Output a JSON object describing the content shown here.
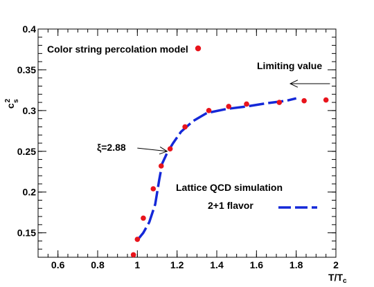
{
  "chart_data": {
    "type": "scatter",
    "xlabel": "T/T",
    "xlabel_sub": "c",
    "ylabel": "c",
    "ylabel_sup": "2",
    "ylabel_sub": "s",
    "xlim": [
      0.5,
      2.0
    ],
    "ylim": [
      0.12,
      0.4
    ],
    "x_ticks": [
      0.6,
      0.8,
      1.0,
      1.2,
      1.4,
      1.6,
      1.8,
      2.0
    ],
    "x_tick_labels": [
      "0.6",
      "0.8",
      "1",
      "1.2",
      "1.4",
      "1.6",
      "1.8",
      "2"
    ],
    "y_ticks": [
      0.15,
      0.2,
      0.25,
      0.3,
      0.35,
      0.4
    ],
    "y_tick_labels": [
      "0.15",
      "0.2",
      "0.25",
      "0.3",
      "0.35",
      "0.4"
    ],
    "grid": false,
    "series": [
      {
        "name": "Color string percolation model",
        "style": "markers",
        "color": "#e8141c",
        "points": [
          [
            0.98,
            0.123
          ],
          [
            1.0,
            0.142
          ],
          [
            1.03,
            0.168
          ],
          [
            1.08,
            0.204
          ],
          [
            1.12,
            0.232
          ],
          [
            1.165,
            0.253
          ],
          [
            1.24,
            0.28
          ],
          [
            1.36,
            0.3
          ],
          [
            1.46,
            0.305
          ],
          [
            1.55,
            0.308
          ],
          [
            1.715,
            0.31
          ],
          [
            1.84,
            0.312
          ],
          [
            1.95,
            0.313
          ]
        ]
      },
      {
        "name": "Lattice QCD simulation",
        "name_line2": "2+1 flavor",
        "style": "dashed-line",
        "color": "#1428d8",
        "points": [
          [
            1.0,
            0.141
          ],
          [
            1.03,
            0.15
          ],
          [
            1.06,
            0.163
          ],
          [
            1.09,
            0.185
          ],
          [
            1.11,
            0.215
          ],
          [
            1.125,
            0.235
          ],
          [
            1.15,
            0.248
          ],
          [
            1.18,
            0.26
          ],
          [
            1.22,
            0.274
          ],
          [
            1.28,
            0.287
          ],
          [
            1.35,
            0.297
          ],
          [
            1.45,
            0.302
          ],
          [
            1.55,
            0.305
          ],
          [
            1.65,
            0.309
          ],
          [
            1.75,
            0.312
          ],
          [
            1.8,
            0.315
          ]
        ]
      }
    ],
    "annotations": [
      {
        "text": "Limiting value",
        "x": 1.76,
        "y": 0.35,
        "arrow_from": [
          1.97,
          0.333
        ],
        "arrow_to": [
          1.77,
          0.333
        ]
      },
      {
        "text": "ξ=2.88",
        "x": 0.88,
        "y": 0.254,
        "arrow_from": [
          1.0,
          0.254
        ],
        "arrow_to": [
          1.15,
          0.25
        ]
      }
    ]
  }
}
